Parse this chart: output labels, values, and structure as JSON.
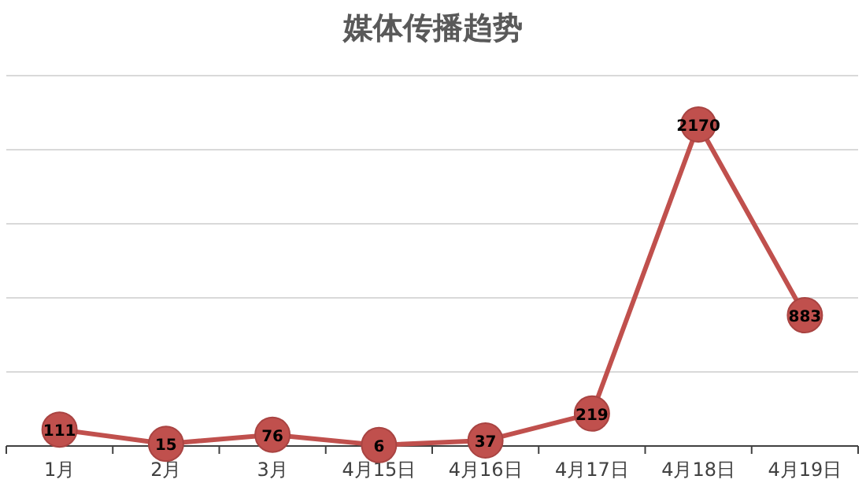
{
  "chart_data": {
    "type": "line",
    "title": "媒体传播趋势",
    "categories": [
      "1月",
      "2月",
      "3月",
      "4月15日",
      "4月16日",
      "4月17日",
      "4月18日",
      "4月19日"
    ],
    "series": [
      {
        "color": "#c0504d",
        "values": [
          111,
          15,
          76,
          6,
          37,
          219,
          2170,
          883
        ]
      }
    ],
    "ylim": [
      0,
      2500
    ],
    "yticks": [
      {
        "value": 0,
        "label": null
      },
      {
        "value": 500,
        "label": null
      },
      {
        "value": 1000,
        "label": null
      },
      {
        "value": 1500,
        "label": null
      },
      {
        "value": 2000,
        "label": null
      },
      {
        "value": 2500,
        "label": null
      }
    ],
    "tick_labels": "x",
    "grid": "y",
    "marker": "circle",
    "data_labels": true
  }
}
